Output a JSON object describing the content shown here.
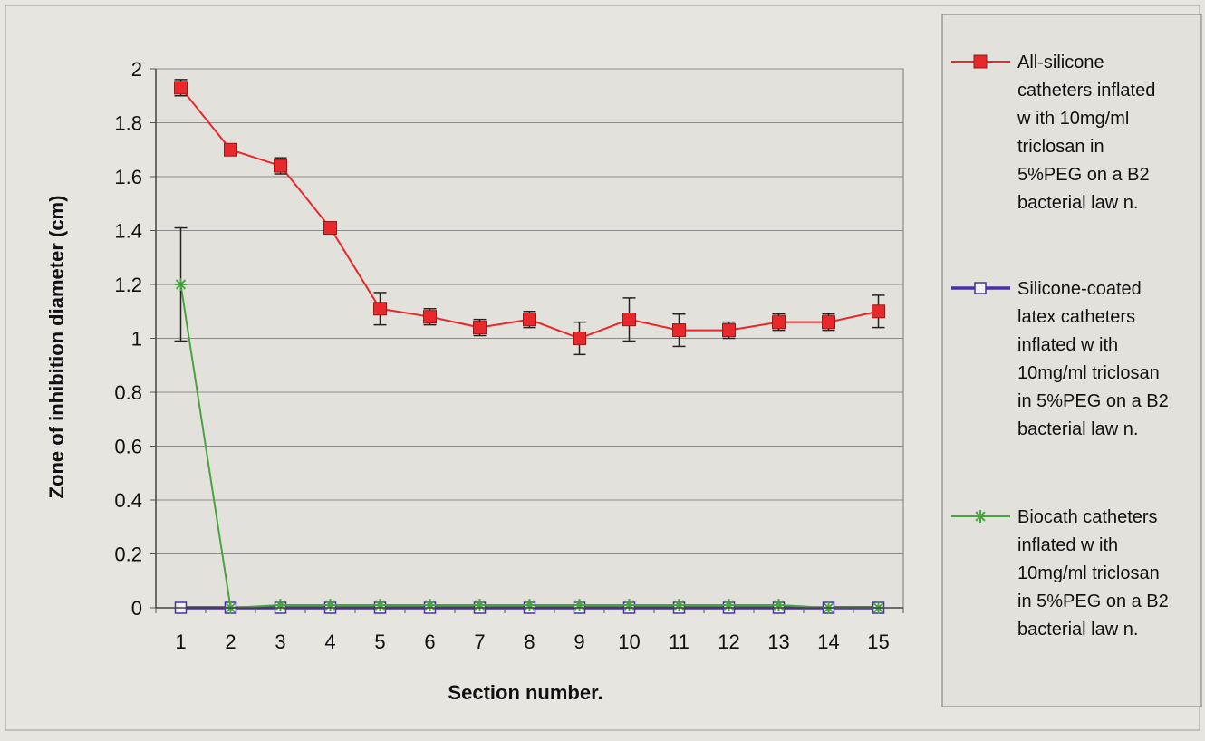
{
  "chart_data": {
    "type": "line",
    "title": "",
    "xlabel": "Section number.",
    "ylabel": "Zone of inhibition diameter (cm)",
    "ylim": [
      0,
      2
    ],
    "yticks": [
      "0",
      "0.2",
      "0.4",
      "0.6",
      "0.8",
      "1",
      "1.2",
      "1.4",
      "1.6",
      "1.8",
      "2"
    ],
    "categories": [
      "1",
      "2",
      "3",
      "4",
      "5",
      "6",
      "7",
      "8",
      "9",
      "10",
      "11",
      "12",
      "13",
      "14",
      "15"
    ],
    "grid": "horizontal",
    "legend_position": "right",
    "series": [
      {
        "name": "All-silicone catheters inflated w ith 10mg/ml triclosan in 5%PEG on a B2 bacterial law n.",
        "legend_lines": [
          "All-silicone",
          "catheters inflated",
          "w ith 10mg/ml",
          "triclosan in",
          "5%PEG on a B2",
          "bacterial law n."
        ],
        "color": "#e8282a",
        "marker": "square",
        "values": [
          1.93,
          1.7,
          1.64,
          1.41,
          1.11,
          1.08,
          1.04,
          1.07,
          1.0,
          1.07,
          1.03,
          1.03,
          1.06,
          1.06,
          1.1
        ],
        "errors": [
          0.03,
          0.0,
          0.03,
          0.0,
          0.06,
          0.03,
          0.03,
          0.03,
          0.06,
          0.08,
          0.06,
          0.03,
          0.03,
          0.03,
          0.06
        ]
      },
      {
        "name": "Silicone-coated latex catheters inflated w ith 10mg/ml triclosan in 5%PEG on a B2 bacterial law n.",
        "legend_lines": [
          "Silicone-coated",
          "latex catheters",
          "inflated w ith",
          "10mg/ml triclosan",
          "in 5%PEG on a B2",
          "bacterial law n."
        ],
        "color": "#4a2fa8",
        "marker": "hollow-square",
        "values": [
          0,
          0,
          0,
          0,
          0,
          0,
          0,
          0,
          0,
          0,
          0,
          0,
          0,
          0,
          0
        ]
      },
      {
        "name": "Biocath catheters inflated w ith 10mg/ml triclosan in 5%PEG on a B2 bacterial law n.",
        "legend_lines": [
          "Biocath catheters",
          "inflated w ith",
          "10mg/ml triclosan",
          "in 5%PEG on a B2",
          "bacterial law n."
        ],
        "color": "#4aa342",
        "marker": "star",
        "values": [
          1.2,
          0,
          0.01,
          0.01,
          0.01,
          0.01,
          0.01,
          0.01,
          0.01,
          0.01,
          0.01,
          0.01,
          0.01,
          0.0,
          0.0
        ],
        "errors": [
          0.21,
          0,
          0,
          0,
          0,
          0,
          0,
          0,
          0,
          0,
          0,
          0,
          0,
          0,
          0
        ]
      }
    ]
  }
}
